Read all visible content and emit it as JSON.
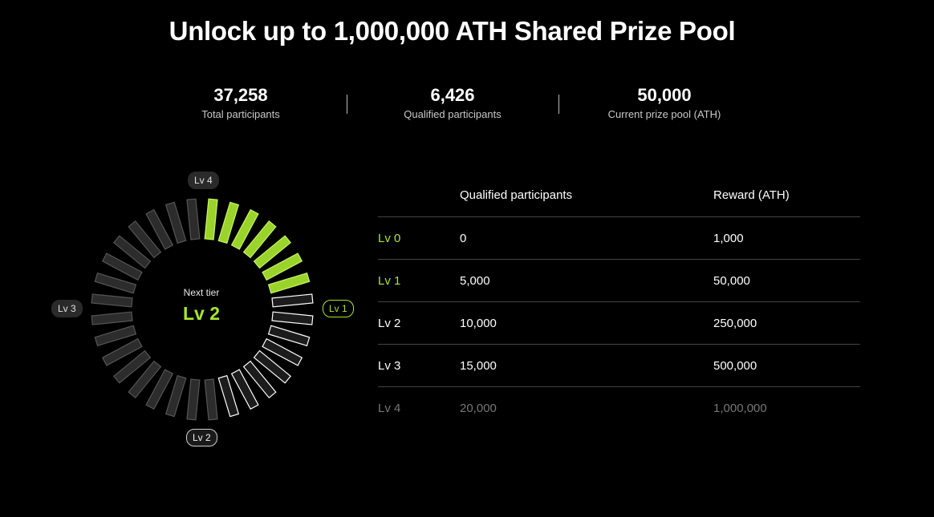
{
  "page": {
    "title": "Unlock up to 1,000,000 ATH Shared Prize Pool"
  },
  "stats": [
    {
      "value": "37,258",
      "label": "Total participants"
    },
    {
      "value": "6,426",
      "label": "Qualified participants"
    },
    {
      "value": "50,000",
      "label": "Current prize pool (ATH)"
    }
  ],
  "wheel": {
    "badges": {
      "lv4": "Lv 4",
      "lv3": "Lv 3",
      "lv2": "Lv 2",
      "lv1": "Lv 1"
    },
    "center_label": "Next tier",
    "center_value": "Lv 2",
    "segments_total": 32,
    "segments_filled": 7,
    "colors": {
      "filled": "#9ad42a",
      "current": "#ffffff",
      "empty": "#555555",
      "accent": "#a8e62e"
    }
  },
  "table": {
    "headers": [
      "",
      "Qualified participants",
      "Reward (ATH)"
    ],
    "rows": [
      {
        "level": "Lv 0",
        "qualified": "0",
        "reward": "1,000",
        "reached": true
      },
      {
        "level": "Lv 1",
        "qualified": "5,000",
        "reward": "50,000",
        "reached": true
      },
      {
        "level": "Lv 2",
        "qualified": "10,000",
        "reward": "250,000",
        "reached": false
      },
      {
        "level": "Lv 3",
        "qualified": "15,000",
        "reward": "500,000",
        "reached": false
      },
      {
        "level": "Lv 4",
        "qualified": "20,000",
        "reward": "1,000,000",
        "reached": false
      }
    ]
  }
}
